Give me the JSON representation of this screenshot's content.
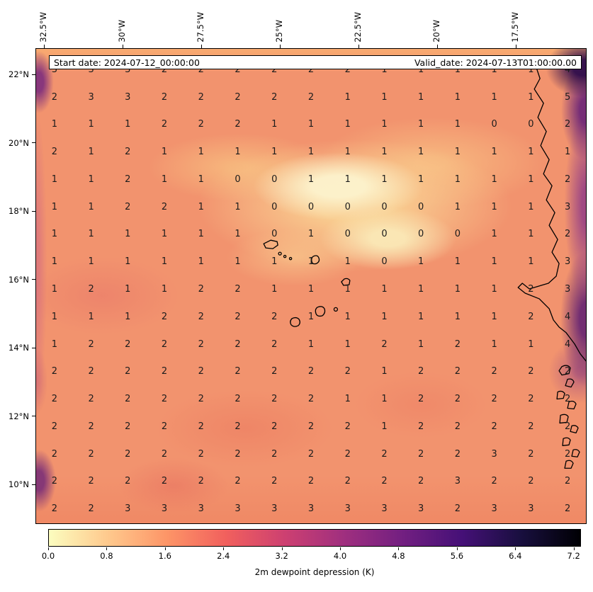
{
  "chart_data": {
    "type": "heatmap",
    "description": "Filled-contour meteorological map with gridded value annotations over the eastern tropical Atlantic, Cape Verde islands and West African coastline",
    "annotations": {
      "start_date": "Start date: 2024-07-12_00:00:00",
      "valid_date": "Valid_date: 2024-07-13T01:00:00.00"
    },
    "x_tick_labels": [
      "32.5°W",
      "30°W",
      "27.5°W",
      "25°W",
      "22.5°W",
      "20°W",
      "17.5°W"
    ],
    "y_tick_labels": [
      "22°N",
      "20°N",
      "18°N",
      "16°N",
      "14°N",
      "12°N",
      "10°N"
    ],
    "colorbar": {
      "label": "2m dewpoint depression (K)",
      "tick_labels": [
        "0.0",
        "0.8",
        "1.6",
        "2.4",
        "3.2",
        "4.0",
        "4.8",
        "5.6",
        "6.4",
        "7.2"
      ],
      "tick_values": [
        0.0,
        0.8,
        1.6,
        2.4,
        3.2,
        4.0,
        4.8,
        5.6,
        6.4,
        7.2
      ],
      "colormap": "magma_r",
      "stops": [
        "#fcfdbf",
        "#fec98d",
        "#fd9567",
        "#f1605d",
        "#cd4071",
        "#9f2f7f",
        "#721f81",
        "#451077",
        "#180f3e",
        "#000004"
      ]
    },
    "values_grid": [
      [
        3,
        3,
        3,
        2,
        2,
        2,
        2,
        2,
        2,
        1,
        1,
        1,
        1,
        1,
        4
      ],
      [
        2,
        3,
        3,
        2,
        2,
        2,
        2,
        2,
        1,
        1,
        1,
        1,
        1,
        1,
        5
      ],
      [
        1,
        1,
        1,
        2,
        2,
        2,
        1,
        1,
        1,
        1,
        1,
        1,
        0,
        0,
        2
      ],
      [
        2,
        1,
        2,
        1,
        1,
        1,
        1,
        1,
        1,
        1,
        1,
        1,
        1,
        1,
        1
      ],
      [
        1,
        1,
        2,
        1,
        1,
        0,
        0,
        1,
        1,
        1,
        1,
        1,
        1,
        1,
        2
      ],
      [
        1,
        1,
        2,
        2,
        1,
        1,
        0,
        0,
        0,
        0,
        0,
        1,
        1,
        1,
        3
      ],
      [
        1,
        1,
        1,
        1,
        1,
        1,
        0,
        1,
        0,
        0,
        0,
        0,
        1,
        1,
        2
      ],
      [
        1,
        1,
        1,
        1,
        1,
        1,
        1,
        1,
        1,
        0,
        1,
        1,
        1,
        1,
        3
      ],
      [
        1,
        2,
        1,
        1,
        2,
        2,
        1,
        1,
        1,
        1,
        1,
        1,
        1,
        2,
        3
      ],
      [
        1,
        1,
        1,
        2,
        2,
        2,
        2,
        1,
        1,
        1,
        1,
        1,
        1,
        2,
        4
      ],
      [
        1,
        2,
        2,
        2,
        2,
        2,
        2,
        1,
        1,
        2,
        1,
        2,
        1,
        1,
        4
      ],
      [
        2,
        2,
        2,
        2,
        2,
        2,
        2,
        2,
        2,
        1,
        2,
        2,
        2,
        2,
        2
      ],
      [
        2,
        2,
        2,
        2,
        2,
        2,
        2,
        2,
        1,
        1,
        2,
        2,
        2,
        2,
        2
      ],
      [
        2,
        2,
        2,
        2,
        2,
        2,
        2,
        2,
        2,
        1,
        2,
        2,
        2,
        2,
        2
      ],
      [
        2,
        2,
        2,
        2,
        2,
        2,
        2,
        2,
        2,
        2,
        2,
        2,
        3,
        2,
        2
      ],
      [
        2,
        2,
        2,
        2,
        2,
        2,
        2,
        2,
        2,
        2,
        2,
        3,
        2,
        2,
        2
      ],
      [
        2,
        2,
        3,
        3,
        3,
        3,
        3,
        3,
        3,
        3,
        3,
        2,
        3,
        3,
        2
      ]
    ]
  }
}
